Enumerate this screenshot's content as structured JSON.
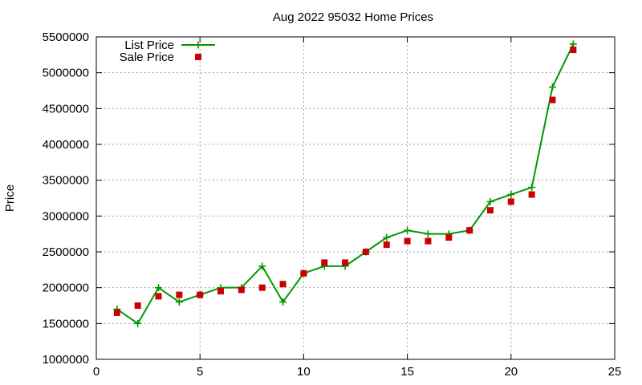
{
  "chart_data": {
    "type": "line",
    "title": "Aug 2022 95032 Home Prices",
    "xlabel": "",
    "ylabel": "Price",
    "xlim": [
      0,
      25
    ],
    "ylim": [
      1000000,
      5500000
    ],
    "x_ticks": [
      0,
      5,
      10,
      15,
      20,
      25
    ],
    "y_ticks": [
      1000000,
      1500000,
      2000000,
      2500000,
      3000000,
      3500000,
      4000000,
      4500000,
      5000000,
      5500000
    ],
    "x_tick_labels": [
      "0",
      "5",
      "10",
      "15",
      "20",
      "25"
    ],
    "y_tick_labels": [
      "1000000",
      "1500000",
      "2000000",
      "2500000",
      "3000000",
      "3500000",
      "4000000",
      "4500000",
      "5000000",
      "5500000"
    ],
    "grid": true,
    "legend_position": "top-left",
    "series": [
      {
        "name": "List Price",
        "style": "line-plus",
        "color": "#009900",
        "x": [
          1,
          2,
          3,
          4,
          5,
          6,
          7,
          8,
          9,
          10,
          11,
          12,
          13,
          14,
          15,
          16,
          17,
          18,
          19,
          20,
          21,
          22,
          23
        ],
        "values": [
          1700000,
          1500000,
          2000000,
          1800000,
          1900000,
          2000000,
          2000000,
          2300000,
          1800000,
          2200000,
          2300000,
          2300000,
          2500000,
          2700000,
          2800000,
          2750000,
          2750000,
          2800000,
          3200000,
          3300000,
          3400000,
          4800000,
          5400000
        ]
      },
      {
        "name": "Sale Price",
        "style": "square-points",
        "color": "#cc0000",
        "x": [
          1,
          2,
          3,
          4,
          5,
          6,
          7,
          8,
          9,
          10,
          11,
          12,
          13,
          14,
          15,
          16,
          17,
          18,
          19,
          20,
          21,
          22,
          23
        ],
        "values": [
          1650000,
          1750000,
          1880000,
          1900000,
          1900000,
          1950000,
          1970000,
          2000000,
          2050000,
          2200000,
          2350000,
          2350000,
          2500000,
          2600000,
          2650000,
          2650000,
          2700000,
          2800000,
          3080000,
          3200000,
          3300000,
          4620000,
          5320000
        ]
      }
    ]
  }
}
